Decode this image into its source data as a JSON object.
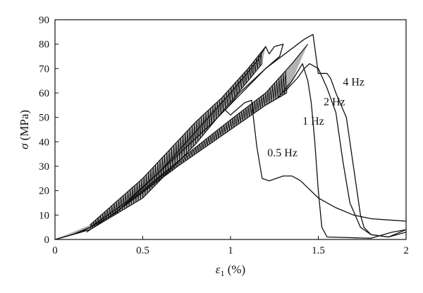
{
  "chart_data": {
    "type": "line",
    "title": "",
    "xlabel": {
      "main": "ε",
      "sub": "1",
      "rest": " (%)"
    },
    "ylabel": "σ (MPa)",
    "xlim": [
      0,
      2
    ],
    "ylim": [
      0,
      90
    ],
    "xticks": [
      0,
      0.5,
      1,
      1.5,
      2
    ],
    "xtick_labels": [
      "0",
      "0.5",
      "1",
      "1.5",
      "2"
    ],
    "yticks": [
      0,
      10,
      20,
      30,
      40,
      50,
      60,
      70,
      80,
      90
    ],
    "ytick_labels": [
      "0",
      "10",
      "20",
      "30",
      "40",
      "50",
      "60",
      "70",
      "80",
      "90"
    ],
    "grid": false,
    "legend": "none",
    "line_color": "#111111",
    "series": [
      {
        "name": "4 Hz",
        "loop_band": {
          "lower": [
            [
              0.18,
              3
            ],
            [
              0.4,
              14
            ],
            [
              0.7,
              30
            ],
            [
              1.0,
              45
            ],
            [
              1.2,
              55
            ],
            [
              1.32,
              60
            ]
          ],
          "upper": [
            [
              0.38,
              13
            ],
            [
              0.7,
              32
            ],
            [
              1.0,
              49
            ],
            [
              1.2,
              60
            ],
            [
              1.35,
              72
            ],
            [
              1.44,
              80
            ]
          ]
        },
        "envelope": [
          [
            0,
            0
          ],
          [
            0.1,
            2
          ],
          [
            0.2,
            5
          ],
          [
            0.4,
            15
          ],
          [
            0.6,
            28
          ],
          [
            0.9,
            48
          ],
          [
            1.2,
            70
          ],
          [
            1.42,
            82
          ],
          [
            1.47,
            84
          ]
        ],
        "post_peak": [
          [
            1.47,
            84
          ],
          [
            1.5,
            68
          ],
          [
            1.55,
            68
          ],
          [
            1.57,
            66
          ],
          [
            1.6,
            60
          ],
          [
            1.66,
            50
          ],
          [
            1.7,
            30
          ],
          [
            1.74,
            10
          ],
          [
            1.76,
            5
          ],
          [
            1.8,
            2
          ],
          [
            1.9,
            1
          ],
          [
            2.0,
            4
          ]
        ]
      },
      {
        "name": "2 Hz",
        "envelope": [
          [
            1.3,
            60
          ],
          [
            1.38,
            66
          ],
          [
            1.42,
            70
          ],
          [
            1.45,
            72
          ]
        ],
        "post_peak": [
          [
            1.45,
            72
          ],
          [
            1.5,
            70
          ],
          [
            1.55,
            62
          ],
          [
            1.6,
            52
          ],
          [
            1.64,
            32
          ],
          [
            1.68,
            15
          ],
          [
            1.74,
            5
          ],
          [
            1.8,
            2
          ],
          [
            1.9,
            1
          ],
          [
            2.0,
            3
          ]
        ]
      },
      {
        "name": "1 Hz",
        "envelope": [
          [
            1.27,
            58
          ],
          [
            1.35,
            65
          ],
          [
            1.41,
            72
          ]
        ],
        "post_peak": [
          [
            1.41,
            72
          ],
          [
            1.44,
            65
          ],
          [
            1.46,
            56
          ],
          [
            1.48,
            40
          ],
          [
            1.5,
            20
          ],
          [
            1.52,
            5
          ],
          [
            1.55,
            1
          ],
          [
            1.8,
            0.5
          ],
          [
            1.92,
            3
          ],
          [
            2.0,
            4
          ]
        ]
      },
      {
        "name": "0.5 Hz",
        "loop_band": {
          "lower": [
            [
              0,
              0
            ],
            [
              0.2,
              4
            ],
            [
              0.5,
              17
            ],
            [
              0.8,
              39
            ],
            [
              0.95,
              52
            ],
            [
              1.1,
              65
            ],
            [
              1.18,
              72
            ]
          ],
          "upper": [
            [
              0.2,
              6
            ],
            [
              0.5,
              25
            ],
            [
              0.8,
              48
            ],
            [
              0.95,
              58
            ],
            [
              1.1,
              70
            ],
            [
              1.2,
              79
            ]
          ]
        },
        "envelope": [
          [
            0,
            0
          ],
          [
            0.15,
            3
          ],
          [
            0.35,
            11
          ],
          [
            0.6,
            28
          ],
          [
            0.85,
            48
          ],
          [
            1.0,
            60
          ],
          [
            1.15,
            73
          ],
          [
            1.2,
            79
          ]
        ],
        "post_peak": [
          [
            1.2,
            79
          ],
          [
            1.22,
            76
          ],
          [
            1.25,
            79
          ],
          [
            1.3,
            80
          ],
          [
            1.28,
            75
          ],
          [
            1.2,
            70
          ],
          [
            1.05,
            60
          ],
          [
            0.97,
            53
          ],
          [
            1.0,
            51
          ],
          [
            1.08,
            56
          ],
          [
            1.12,
            57
          ],
          [
            1.13,
            50
          ],
          [
            1.15,
            38
          ],
          [
            1.18,
            25
          ],
          [
            1.22,
            24
          ],
          [
            1.3,
            26
          ],
          [
            1.35,
            26
          ],
          [
            1.4,
            24
          ],
          [
            1.5,
            17
          ],
          [
            1.6,
            13
          ],
          [
            1.7,
            10
          ],
          [
            1.8,
            8.5
          ],
          [
            1.9,
            8
          ],
          [
            2.0,
            7.5
          ]
        ]
      }
    ],
    "annotations": [
      {
        "text": "4 Hz",
        "x": 1.64,
        "y": 63
      },
      {
        "text": "2 Hz",
        "x": 1.53,
        "y": 55
      },
      {
        "text": "1 Hz",
        "x": 1.41,
        "y": 47
      },
      {
        "text": "0.5 Hz",
        "x": 1.21,
        "y": 34
      }
    ]
  }
}
